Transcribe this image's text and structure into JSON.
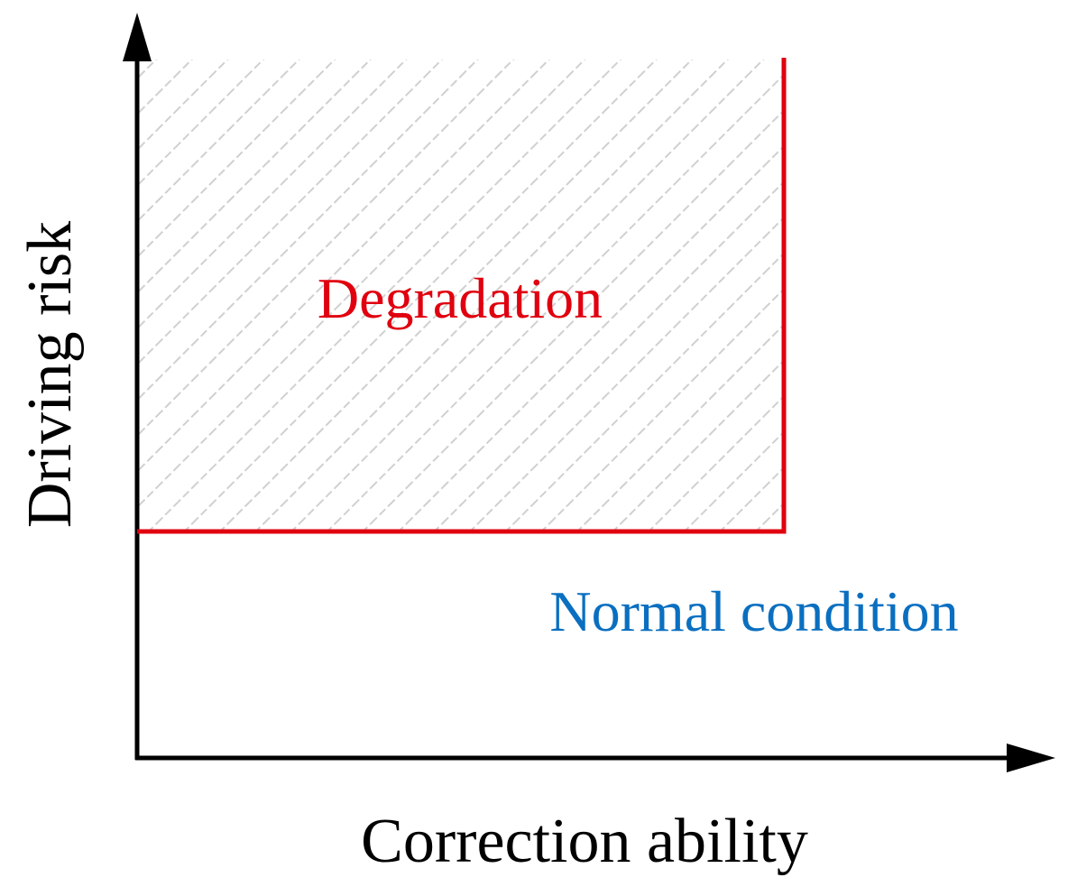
{
  "diagram": {
    "x_axis_label": "Correction ability",
    "y_axis_label": "Driving risk",
    "regions": {
      "degradation": {
        "label": "Degradation",
        "color": "#e0000f"
      },
      "normal": {
        "label": "Normal condition",
        "color": "#0a6fc0"
      }
    },
    "axis_color": "#000000",
    "hatch_color": "#d0d0d0"
  }
}
